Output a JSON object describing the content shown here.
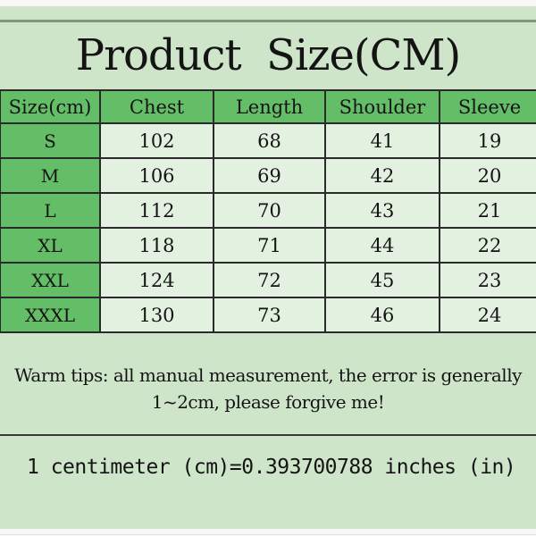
{
  "chart_data": {
    "type": "table",
    "title": "Product Size(CM)",
    "columns": [
      "Size(cm)",
      "Chest",
      "Length",
      "Shoulder",
      "Sleeve"
    ],
    "rows": [
      [
        "S",
        "102",
        "68",
        "41",
        "19"
      ],
      [
        "M",
        "106",
        "69",
        "42",
        "20"
      ],
      [
        "L",
        "112",
        "70",
        "43",
        "21"
      ],
      [
        "XL",
        "118",
        "71",
        "44",
        "22"
      ],
      [
        "XXL",
        "124",
        "72",
        "45",
        "23"
      ],
      [
        "XXXL",
        "130",
        "73",
        "46",
        "24"
      ]
    ]
  },
  "notes": {
    "warm_tips_line1": "Warm tips: all manual measurement, the error is generally",
    "warm_tips_line2": "1~2cm, please forgive me!",
    "conversion": "1 centimeter (cm)=0.393700788 inches (in)"
  },
  "colors": {
    "page_background": "#cfe5ca",
    "header_green": "#64bd67",
    "cell_green": "#e3f1e0",
    "border_dark": "#2a2a2a",
    "top_rule_green": "#7d987d",
    "divider_dark": "#3a3a3a",
    "outer_strip": "#f7f7f7",
    "text": "#141414"
  }
}
